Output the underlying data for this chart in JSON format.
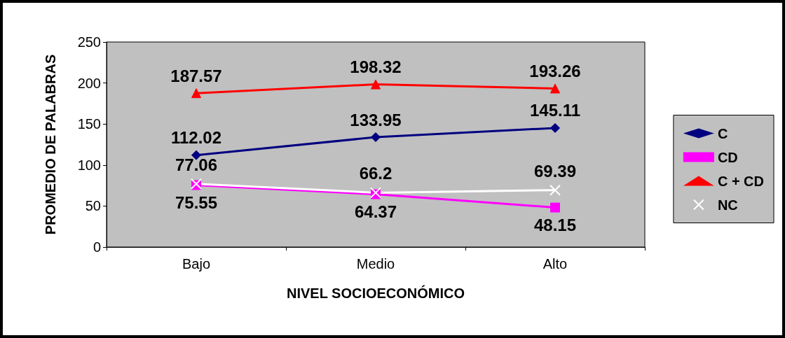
{
  "chart_data": {
    "type": "line",
    "xlabel": "NIVEL SOCIOECONÓMICO",
    "ylabel": "PROMEDIO DE PALABRAS",
    "categories": [
      "Bajo",
      "Medio",
      "Alto"
    ],
    "series": [
      {
        "name": "C",
        "color": "#000080",
        "marker": "diamond",
        "values": [
          112.02,
          133.95,
          145.11
        ]
      },
      {
        "name": "CD",
        "color": "#ff00ff",
        "marker": "square",
        "values": [
          75.55,
          64.37,
          48.15
        ]
      },
      {
        "name": "C + CD",
        "color": "#ff0000",
        "marker": "triangle",
        "values": [
          187.57,
          198.32,
          193.26
        ]
      },
      {
        "name": "NC",
        "color": "#ffffff",
        "marker": "cross",
        "values": [
          77.06,
          66.2,
          69.39
        ]
      }
    ],
    "ylim": [
      0,
      250
    ],
    "yticks": [
      0,
      50,
      100,
      150,
      200,
      250
    ],
    "grid": false,
    "legend": "right",
    "data_labels": true
  }
}
